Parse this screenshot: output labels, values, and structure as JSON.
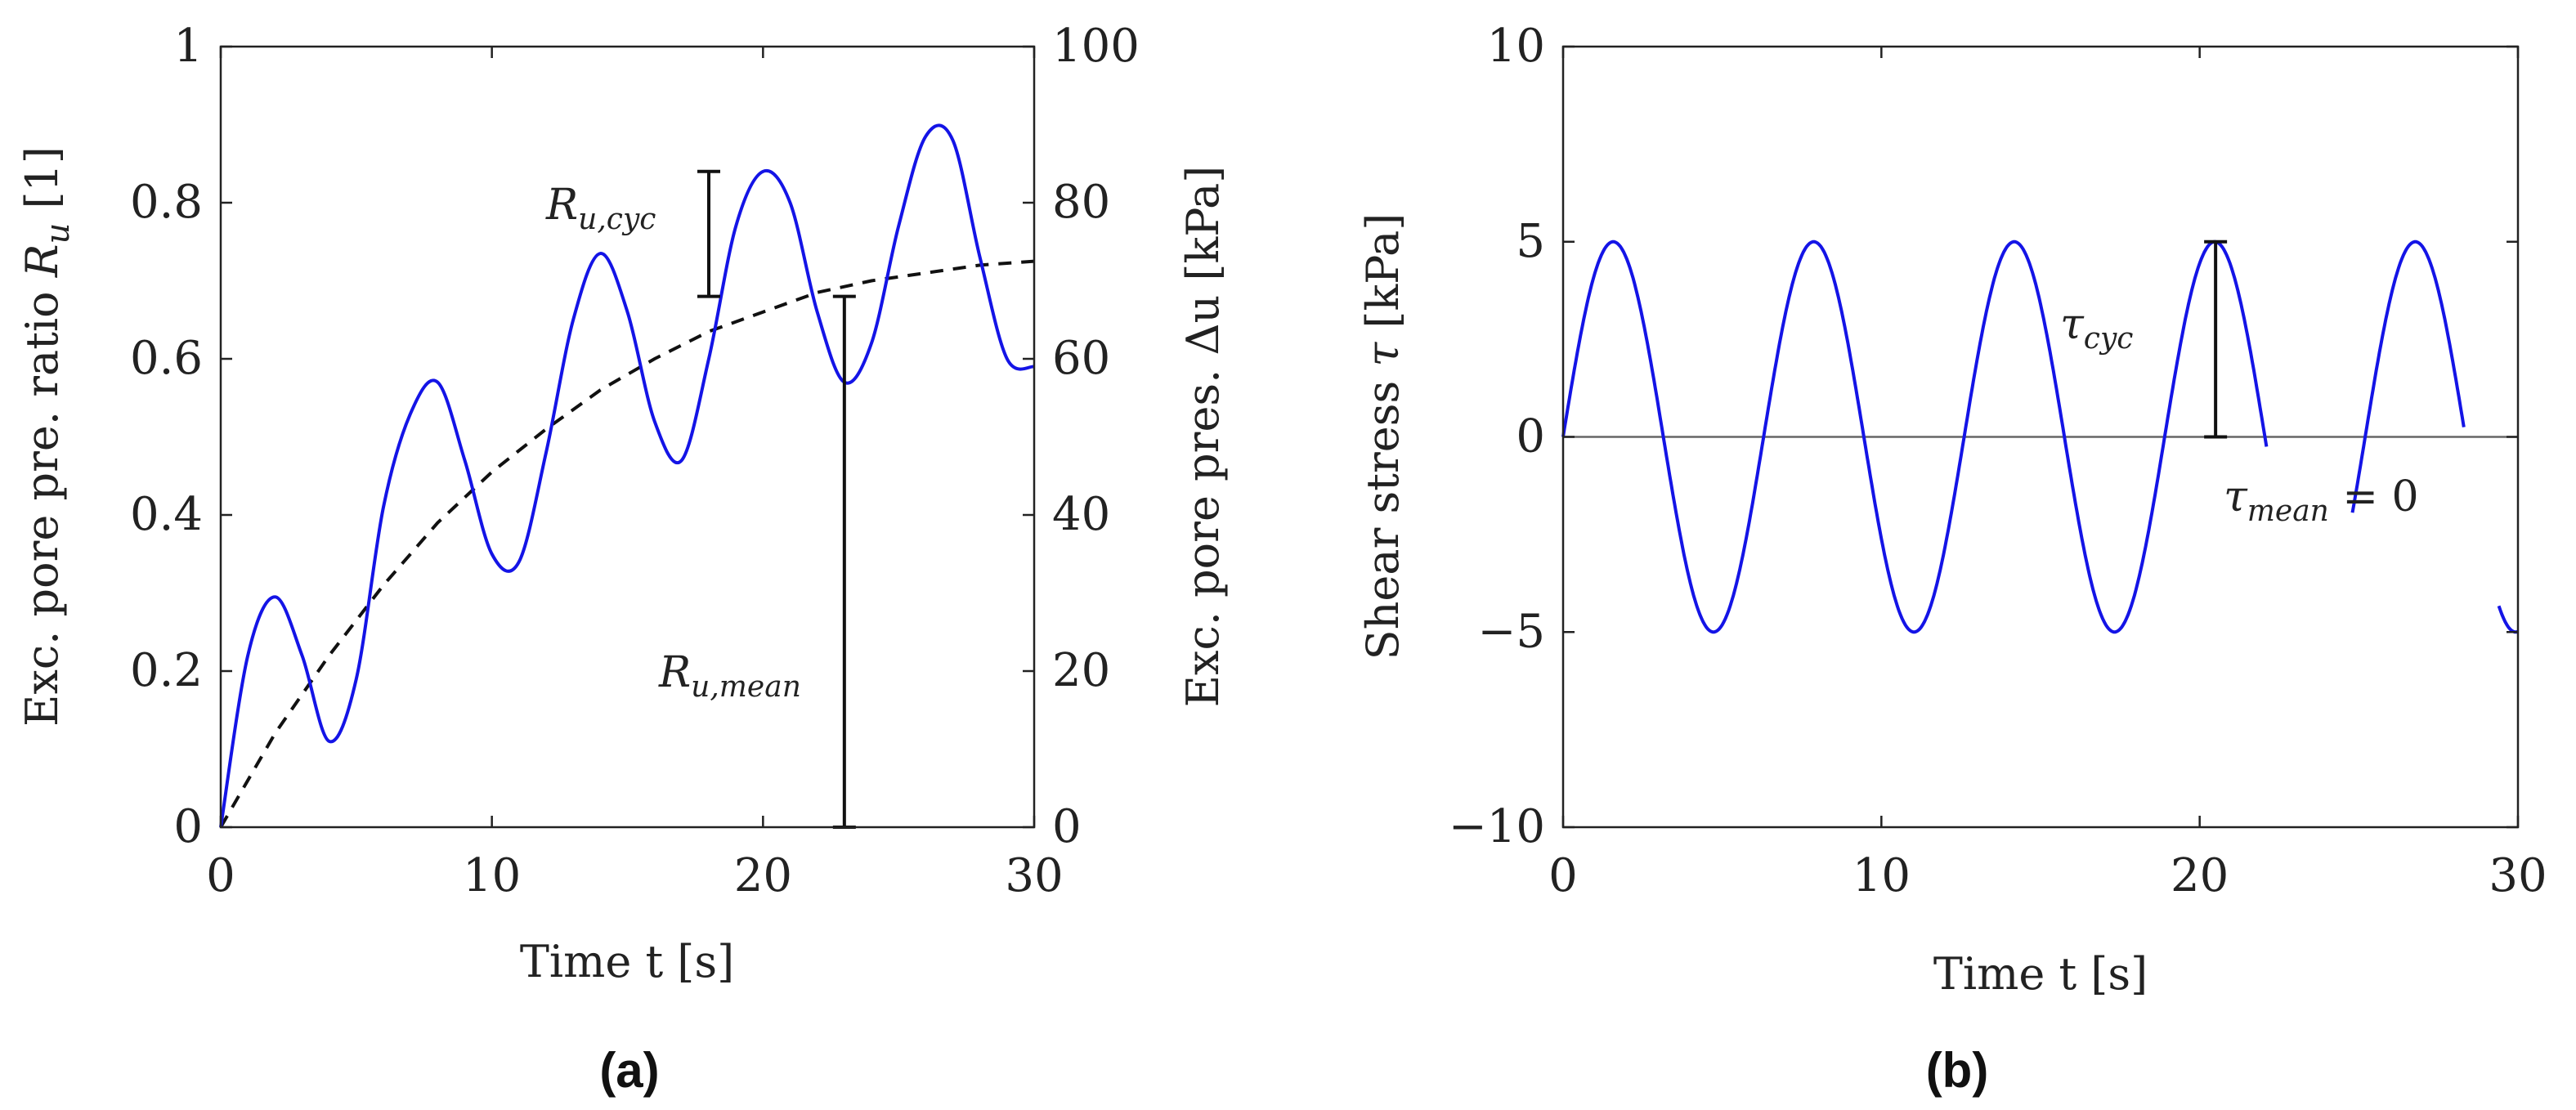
{
  "chart_data": [
    {
      "type": "line",
      "panel": "(a)",
      "xlabel": "Time t [s]",
      "ylabel_left": "Exc. pore pre. ratio R_u [1]",
      "ylabel_right": "Exc. pore pres. Δu [kPa]",
      "xlim": [
        0,
        30
      ],
      "ylim_left": [
        0,
        1
      ],
      "ylim_right": [
        0,
        100
      ],
      "x_ticks": [
        "0",
        "10",
        "20",
        "30"
      ],
      "y_ticks_left": [
        "0",
        "0.2",
        "0.4",
        "0.6",
        "0.8",
        "1"
      ],
      "y_ticks_right": [
        "0",
        "20",
        "40",
        "60",
        "80",
        "100"
      ],
      "grid": false,
      "series": [
        {
          "style": "solid",
          "color": "#1414e6",
          "x": [
            0,
            1,
            2,
            3,
            4,
            5,
            6,
            7,
            8,
            9,
            10,
            11,
            12,
            13,
            14,
            15,
            16,
            17,
            18,
            19,
            20,
            21,
            22,
            23,
            24,
            25,
            26,
            27,
            28,
            29,
            30
          ],
          "y": [
            0.0,
            0.22,
            0.295,
            0.22,
            0.11,
            0.19,
            0.41,
            0.53,
            0.57,
            0.47,
            0.35,
            0.34,
            0.48,
            0.65,
            0.735,
            0.66,
            0.52,
            0.47,
            0.6,
            0.77,
            0.84,
            0.8,
            0.66,
            0.57,
            0.62,
            0.77,
            0.885,
            0.88,
            0.73,
            0.6,
            0.59
          ]
        },
        {
          "style": "dashed",
          "color": "#111111",
          "x": [
            0,
            2,
            4,
            6,
            8,
            10,
            12,
            14,
            16,
            18,
            20,
            22,
            24,
            26,
            28,
            30
          ],
          "y": [
            0.0,
            0.12,
            0.22,
            0.31,
            0.39,
            0.455,
            0.51,
            0.56,
            0.6,
            0.635,
            0.66,
            0.685,
            0.7,
            0.71,
            0.72,
            0.725
          ]
        }
      ],
      "annotations": [
        {
          "text": "R_u,cyc",
          "x": 18.0,
          "y_low": 0.68,
          "y_high": 0.84
        },
        {
          "text": "R_u,mean",
          "x": 23.0,
          "y_low": 0.0,
          "y_high": 0.68
        }
      ]
    },
    {
      "type": "line",
      "panel": "(b)",
      "xlabel": "Time t [s]",
      "ylabel": "Shear stress τ [kPa]",
      "xlim": [
        0,
        30
      ],
      "ylim": [
        -10,
        10
      ],
      "x_ticks": [
        "0",
        "10",
        "20",
        "30"
      ],
      "y_ticks": [
        "−10",
        "−5",
        "0",
        "5",
        "10"
      ],
      "grid": false,
      "series": [
        {
          "style": "solid",
          "color": "#1414e6",
          "function": "5*sin(2*pi*t/6.3)",
          "amplitude": 5,
          "period": 6.3,
          "gaps": [
            [
              22.1,
              24.8
            ],
            [
              28.3,
              29.4
            ]
          ]
        }
      ],
      "zero_line": {
        "y": 0,
        "color": "#666666"
      },
      "annotations": [
        {
          "text": "τ_cyc",
          "x": 20.5,
          "y_low": 0,
          "y_high": 5
        },
        {
          "text": "τ_mean = 0"
        }
      ]
    }
  ],
  "labels": {
    "a": {
      "xlabel": "Time t [s]",
      "ylabel_left_main": "Exc. pore pre. ratio ",
      "ylabel_left_var": "R",
      "ylabel_left_sub": "u",
      "ylabel_left_tail": " [1]",
      "ylabel_right": "Exc. pore pres. Δu [kPa]",
      "ann_cyc_main": "R",
      "ann_cyc_sub": "u,cyc",
      "ann_mean_main": "R",
      "ann_mean_sub": "u,mean",
      "panel": "(a)"
    },
    "b": {
      "xlabel": "Time t [s]",
      "ylabel_main": "Shear stress ",
      "ylabel_var": "τ",
      "ylabel_tail": " [kPa]",
      "ann_cyc_main": "τ",
      "ann_cyc_sub": "cyc",
      "ann_mean_main": "τ",
      "ann_mean_sub": "mean",
      "ann_mean_tail": " = 0",
      "panel": "(b)"
    }
  }
}
